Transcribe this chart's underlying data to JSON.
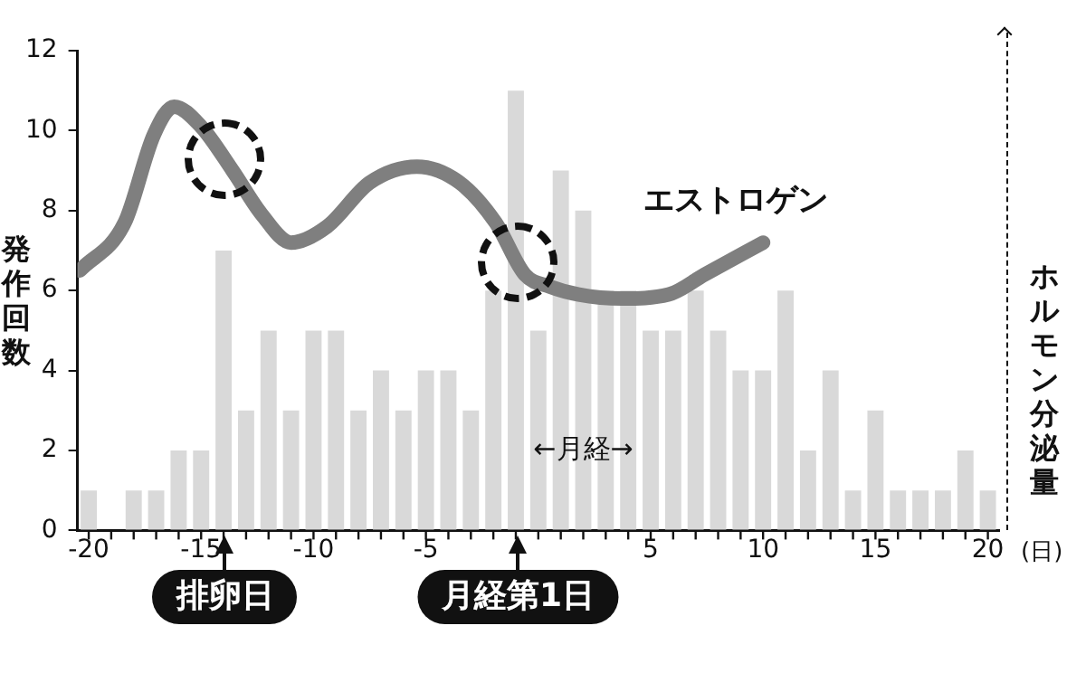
{
  "chart_data": {
    "type": "bar",
    "ylabel": "発作回数",
    "y2label": "ホルモン分泌量",
    "xlabel": "(日)",
    "x": [
      -20,
      -19,
      -18,
      -17,
      -16,
      -15,
      -14,
      -13,
      -12,
      -11,
      -10,
      -9,
      -8,
      -7,
      -6,
      -5,
      -4,
      -3,
      -2,
      -1,
      0,
      1,
      2,
      3,
      4,
      5,
      6,
      7,
      8,
      9,
      10,
      11,
      12,
      13,
      14,
      15,
      16,
      17,
      18,
      19,
      20
    ],
    "series": [
      {
        "color": "#d9d9d9",
        "values": [
          1,
          0,
          1,
          1,
          2,
          2,
          7,
          3,
          5,
          3,
          5,
          5,
          3,
          4,
          3,
          4,
          4,
          3,
          6,
          11,
          5,
          9,
          8,
          6,
          6,
          5,
          5,
          6,
          5,
          4,
          4,
          6,
          2,
          4,
          1,
          3,
          1,
          1,
          1,
          2,
          1
        ]
      },
      {
        "type": "line",
        "name": "エストロゲン",
        "color": "#7f7f7f",
        "x": [
          -20.4,
          -18.4,
          -17.1,
          -16.2,
          -15,
          -13.6,
          -12.3,
          -11,
          -9.4,
          -7.5,
          -5.4,
          -3.5,
          -1.9,
          -0.6,
          0.5,
          1.8,
          3.7,
          5.8,
          7.4,
          10
        ],
        "values": [
          6.5,
          7.7,
          9.9,
          10.6,
          10.1,
          9,
          7.9,
          7.2,
          7.6,
          8.7,
          9.1,
          8.7,
          7.7,
          6.4,
          6.1,
          5.9,
          5.8,
          5.9,
          6.4,
          7.2
        ]
      }
    ],
    "xlim": [
      -20.5,
      20.5
    ],
    "xticks": [
      -20,
      {
        "value": -19,
        "label": null
      },
      {
        "value": -18,
        "label": null
      },
      {
        "value": -17,
        "label": null
      },
      {
        "value": -16,
        "label": null
      },
      -15,
      {
        "value": -14,
        "label": null
      },
      {
        "value": -13,
        "label": null
      },
      {
        "value": -12,
        "label": null
      },
      {
        "value": -11,
        "label": null
      },
      -10,
      {
        "value": -9,
        "label": null
      },
      {
        "value": -8,
        "label": null
      },
      {
        "value": -7,
        "label": null
      },
      {
        "value": -6,
        "label": null
      },
      -5,
      {
        "value": -4,
        "label": null
      },
      {
        "value": -3,
        "label": null
      },
      {
        "value": -2,
        "label": null
      },
      {
        "value": -1,
        "label": null
      },
      {
        "value": 0,
        "label": null
      },
      {
        "value": 1,
        "label": null
      },
      {
        "value": 2,
        "label": null
      },
      {
        "value": 3,
        "label": null
      },
      {
        "value": 4,
        "label": null
      },
      5,
      {
        "value": 6,
        "label": null
      },
      {
        "value": 7,
        "label": null
      },
      {
        "value": 8,
        "label": null
      },
      {
        "value": 9,
        "label": null
      },
      10,
      {
        "value": 11,
        "label": null
      },
      {
        "value": 12,
        "label": null
      },
      {
        "value": 13,
        "label": null
      },
      {
        "value": 14,
        "label": null
      },
      15,
      {
        "value": 16,
        "label": null
      },
      {
        "value": 17,
        "label": null
      },
      {
        "value": 18,
        "label": null
      },
      {
        "value": 19,
        "label": null
      },
      20
    ],
    "ylim": [
      0,
      12
    ],
    "yticks": [
      0,
      2,
      4,
      6,
      8,
      10,
      12
    ],
    "grid": false,
    "legend": false,
    "marker": "none",
    "line_style": "solid",
    "annotations": [
      "排卵日",
      "月経第1日",
      {
        "text": "←月経→",
        "x": 2,
        "y": 2
      }
    ]
  }
}
